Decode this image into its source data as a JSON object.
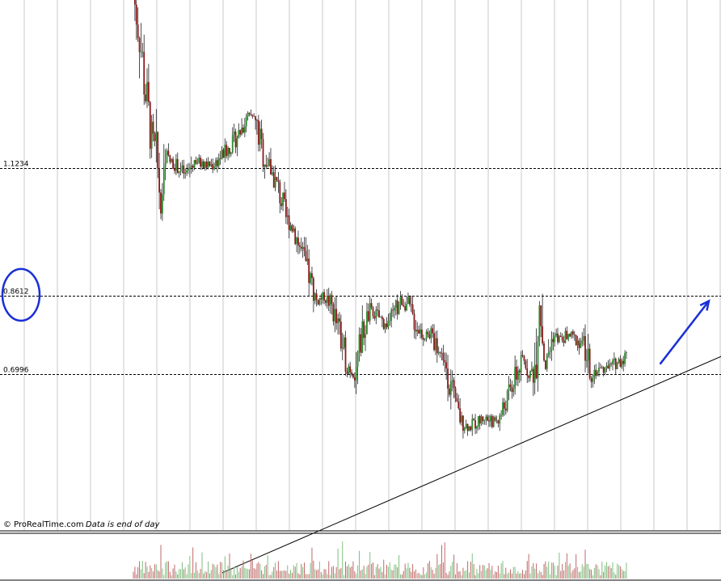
{
  "credit": {
    "brand": "© ProRealTime.com",
    "note": "Data is end of day"
  },
  "colors": {
    "up": "#2e8b2e",
    "down": "#8b1a1a",
    "annotation": "#1a2fd6",
    "grid": "#c8c8c8"
  },
  "chart_data": {
    "type": "candlestick",
    "title": "",
    "xlabel": "",
    "ylabel": "",
    "ylim": [
      0.38,
      1.47
    ],
    "grid": true,
    "price_levels": [
      {
        "label": "1.1234",
        "value": 1.1234
      },
      {
        "label": "0.8612",
        "value": 0.8612
      },
      {
        "label": "0.6996",
        "value": 0.6996
      }
    ],
    "highlighted_level": "0.8612",
    "price_path": [
      [
        0,
        1.48
      ],
      [
        4,
        1.4
      ],
      [
        8,
        1.28
      ],
      [
        12,
        1.18
      ],
      [
        15,
        1.15
      ],
      [
        18,
        1.05
      ],
      [
        22,
        1.14
      ],
      [
        28,
        1.13
      ],
      [
        34,
        1.11
      ],
      [
        40,
        1.14
      ],
      [
        46,
        1.13
      ],
      [
        52,
        1.13
      ],
      [
        58,
        1.15
      ],
      [
        64,
        1.17
      ],
      [
        70,
        1.2
      ],
      [
        75,
        1.23
      ],
      [
        80,
        1.22
      ],
      [
        85,
        1.15
      ],
      [
        90,
        1.12
      ],
      [
        95,
        1.08
      ],
      [
        100,
        1.02
      ],
      [
        105,
        1.0
      ],
      [
        110,
        0.95
      ],
      [
        115,
        0.9
      ],
      [
        120,
        0.85
      ],
      [
        125,
        0.86
      ],
      [
        130,
        0.84
      ],
      [
        135,
        0.78
      ],
      [
        140,
        0.72
      ],
      [
        145,
        0.7
      ],
      [
        150,
        0.78
      ],
      [
        155,
        0.83
      ],
      [
        160,
        0.82
      ],
      [
        165,
        0.8
      ],
      [
        170,
        0.82
      ],
      [
        175,
        0.85
      ],
      [
        180,
        0.84
      ],
      [
        185,
        0.8
      ],
      [
        190,
        0.78
      ],
      [
        195,
        0.78
      ],
      [
        200,
        0.75
      ],
      [
        205,
        0.72
      ],
      [
        210,
        0.64
      ],
      [
        215,
        0.6
      ],
      [
        220,
        0.59
      ],
      [
        225,
        0.6
      ],
      [
        230,
        0.61
      ],
      [
        235,
        0.6
      ],
      [
        240,
        0.61
      ],
      [
        245,
        0.65
      ],
      [
        250,
        0.69
      ],
      [
        255,
        0.73
      ],
      [
        260,
        0.7
      ],
      [
        263,
        0.72
      ],
      [
        266,
        0.85
      ],
      [
        270,
        0.72
      ],
      [
        275,
        0.78
      ],
      [
        280,
        0.77
      ],
      [
        285,
        0.78
      ],
      [
        290,
        0.77
      ],
      [
        295,
        0.76
      ],
      [
        300,
        0.7
      ],
      [
        305,
        0.71
      ],
      [
        310,
        0.71
      ],
      [
        315,
        0.72
      ],
      [
        320,
        0.73
      ],
      [
        323,
        0.74
      ]
    ],
    "trendline": {
      "from": [
        58,
        0.29
      ],
      "to": [
        410,
        0.77
      ]
    },
    "projection_arrow": {
      "from": [
        345,
        0.72
      ],
      "to": [
        377,
        0.85
      ]
    },
    "volume_ylim": [
      0,
      1
    ]
  }
}
